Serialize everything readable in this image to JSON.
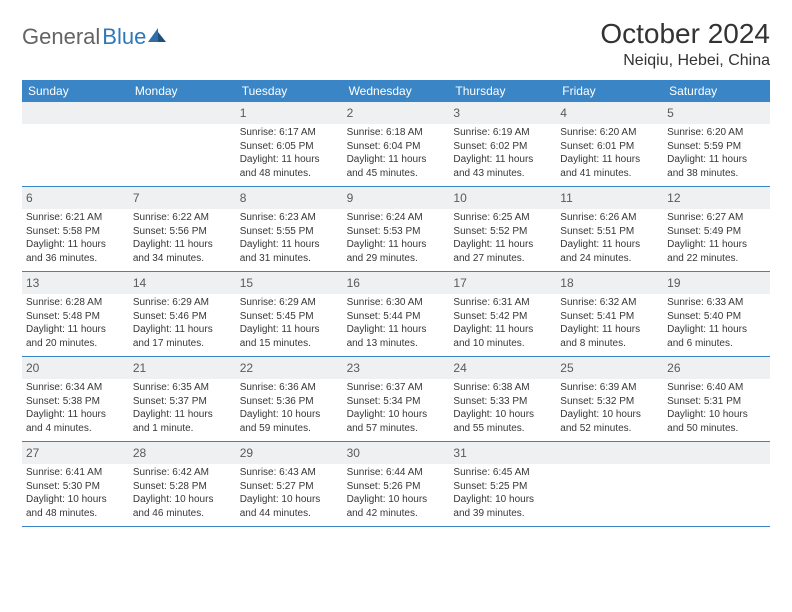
{
  "brand": {
    "text_gray": "General",
    "text_blue": "Blue"
  },
  "title": "October 2024",
  "location": "Neiqiu, Hebei, China",
  "colors": {
    "header_bg": "#3a85c6",
    "daynum_bg": "#eef0f2",
    "border": "#3a85c6",
    "logo_gray": "#646464",
    "logo_blue": "#3078b8"
  },
  "weekdays": [
    "Sunday",
    "Monday",
    "Tuesday",
    "Wednesday",
    "Thursday",
    "Friday",
    "Saturday"
  ],
  "weeks": [
    [
      {
        "day": "",
        "sunrise": "",
        "sunset": "",
        "daylight": ""
      },
      {
        "day": "",
        "sunrise": "",
        "sunset": "",
        "daylight": ""
      },
      {
        "day": "1",
        "sunrise": "Sunrise: 6:17 AM",
        "sunset": "Sunset: 6:05 PM",
        "daylight": "Daylight: 11 hours and 48 minutes."
      },
      {
        "day": "2",
        "sunrise": "Sunrise: 6:18 AM",
        "sunset": "Sunset: 6:04 PM",
        "daylight": "Daylight: 11 hours and 45 minutes."
      },
      {
        "day": "3",
        "sunrise": "Sunrise: 6:19 AM",
        "sunset": "Sunset: 6:02 PM",
        "daylight": "Daylight: 11 hours and 43 minutes."
      },
      {
        "day": "4",
        "sunrise": "Sunrise: 6:20 AM",
        "sunset": "Sunset: 6:01 PM",
        "daylight": "Daylight: 11 hours and 41 minutes."
      },
      {
        "day": "5",
        "sunrise": "Sunrise: 6:20 AM",
        "sunset": "Sunset: 5:59 PM",
        "daylight": "Daylight: 11 hours and 38 minutes."
      }
    ],
    [
      {
        "day": "6",
        "sunrise": "Sunrise: 6:21 AM",
        "sunset": "Sunset: 5:58 PM",
        "daylight": "Daylight: 11 hours and 36 minutes."
      },
      {
        "day": "7",
        "sunrise": "Sunrise: 6:22 AM",
        "sunset": "Sunset: 5:56 PM",
        "daylight": "Daylight: 11 hours and 34 minutes."
      },
      {
        "day": "8",
        "sunrise": "Sunrise: 6:23 AM",
        "sunset": "Sunset: 5:55 PM",
        "daylight": "Daylight: 11 hours and 31 minutes."
      },
      {
        "day": "9",
        "sunrise": "Sunrise: 6:24 AM",
        "sunset": "Sunset: 5:53 PM",
        "daylight": "Daylight: 11 hours and 29 minutes."
      },
      {
        "day": "10",
        "sunrise": "Sunrise: 6:25 AM",
        "sunset": "Sunset: 5:52 PM",
        "daylight": "Daylight: 11 hours and 27 minutes."
      },
      {
        "day": "11",
        "sunrise": "Sunrise: 6:26 AM",
        "sunset": "Sunset: 5:51 PM",
        "daylight": "Daylight: 11 hours and 24 minutes."
      },
      {
        "day": "12",
        "sunrise": "Sunrise: 6:27 AM",
        "sunset": "Sunset: 5:49 PM",
        "daylight": "Daylight: 11 hours and 22 minutes."
      }
    ],
    [
      {
        "day": "13",
        "sunrise": "Sunrise: 6:28 AM",
        "sunset": "Sunset: 5:48 PM",
        "daylight": "Daylight: 11 hours and 20 minutes."
      },
      {
        "day": "14",
        "sunrise": "Sunrise: 6:29 AM",
        "sunset": "Sunset: 5:46 PM",
        "daylight": "Daylight: 11 hours and 17 minutes."
      },
      {
        "day": "15",
        "sunrise": "Sunrise: 6:29 AM",
        "sunset": "Sunset: 5:45 PM",
        "daylight": "Daylight: 11 hours and 15 minutes."
      },
      {
        "day": "16",
        "sunrise": "Sunrise: 6:30 AM",
        "sunset": "Sunset: 5:44 PM",
        "daylight": "Daylight: 11 hours and 13 minutes."
      },
      {
        "day": "17",
        "sunrise": "Sunrise: 6:31 AM",
        "sunset": "Sunset: 5:42 PM",
        "daylight": "Daylight: 11 hours and 10 minutes."
      },
      {
        "day": "18",
        "sunrise": "Sunrise: 6:32 AM",
        "sunset": "Sunset: 5:41 PM",
        "daylight": "Daylight: 11 hours and 8 minutes."
      },
      {
        "day": "19",
        "sunrise": "Sunrise: 6:33 AM",
        "sunset": "Sunset: 5:40 PM",
        "daylight": "Daylight: 11 hours and 6 minutes."
      }
    ],
    [
      {
        "day": "20",
        "sunrise": "Sunrise: 6:34 AM",
        "sunset": "Sunset: 5:38 PM",
        "daylight": "Daylight: 11 hours and 4 minutes."
      },
      {
        "day": "21",
        "sunrise": "Sunrise: 6:35 AM",
        "sunset": "Sunset: 5:37 PM",
        "daylight": "Daylight: 11 hours and 1 minute."
      },
      {
        "day": "22",
        "sunrise": "Sunrise: 6:36 AM",
        "sunset": "Sunset: 5:36 PM",
        "daylight": "Daylight: 10 hours and 59 minutes."
      },
      {
        "day": "23",
        "sunrise": "Sunrise: 6:37 AM",
        "sunset": "Sunset: 5:34 PM",
        "daylight": "Daylight: 10 hours and 57 minutes."
      },
      {
        "day": "24",
        "sunrise": "Sunrise: 6:38 AM",
        "sunset": "Sunset: 5:33 PM",
        "daylight": "Daylight: 10 hours and 55 minutes."
      },
      {
        "day": "25",
        "sunrise": "Sunrise: 6:39 AM",
        "sunset": "Sunset: 5:32 PM",
        "daylight": "Daylight: 10 hours and 52 minutes."
      },
      {
        "day": "26",
        "sunrise": "Sunrise: 6:40 AM",
        "sunset": "Sunset: 5:31 PM",
        "daylight": "Daylight: 10 hours and 50 minutes."
      }
    ],
    [
      {
        "day": "27",
        "sunrise": "Sunrise: 6:41 AM",
        "sunset": "Sunset: 5:30 PM",
        "daylight": "Daylight: 10 hours and 48 minutes."
      },
      {
        "day": "28",
        "sunrise": "Sunrise: 6:42 AM",
        "sunset": "Sunset: 5:28 PM",
        "daylight": "Daylight: 10 hours and 46 minutes."
      },
      {
        "day": "29",
        "sunrise": "Sunrise: 6:43 AM",
        "sunset": "Sunset: 5:27 PM",
        "daylight": "Daylight: 10 hours and 44 minutes."
      },
      {
        "day": "30",
        "sunrise": "Sunrise: 6:44 AM",
        "sunset": "Sunset: 5:26 PM",
        "daylight": "Daylight: 10 hours and 42 minutes."
      },
      {
        "day": "31",
        "sunrise": "Sunrise: 6:45 AM",
        "sunset": "Sunset: 5:25 PM",
        "daylight": "Daylight: 10 hours and 39 minutes."
      },
      {
        "day": "",
        "sunrise": "",
        "sunset": "",
        "daylight": ""
      },
      {
        "day": "",
        "sunrise": "",
        "sunset": "",
        "daylight": ""
      }
    ]
  ]
}
